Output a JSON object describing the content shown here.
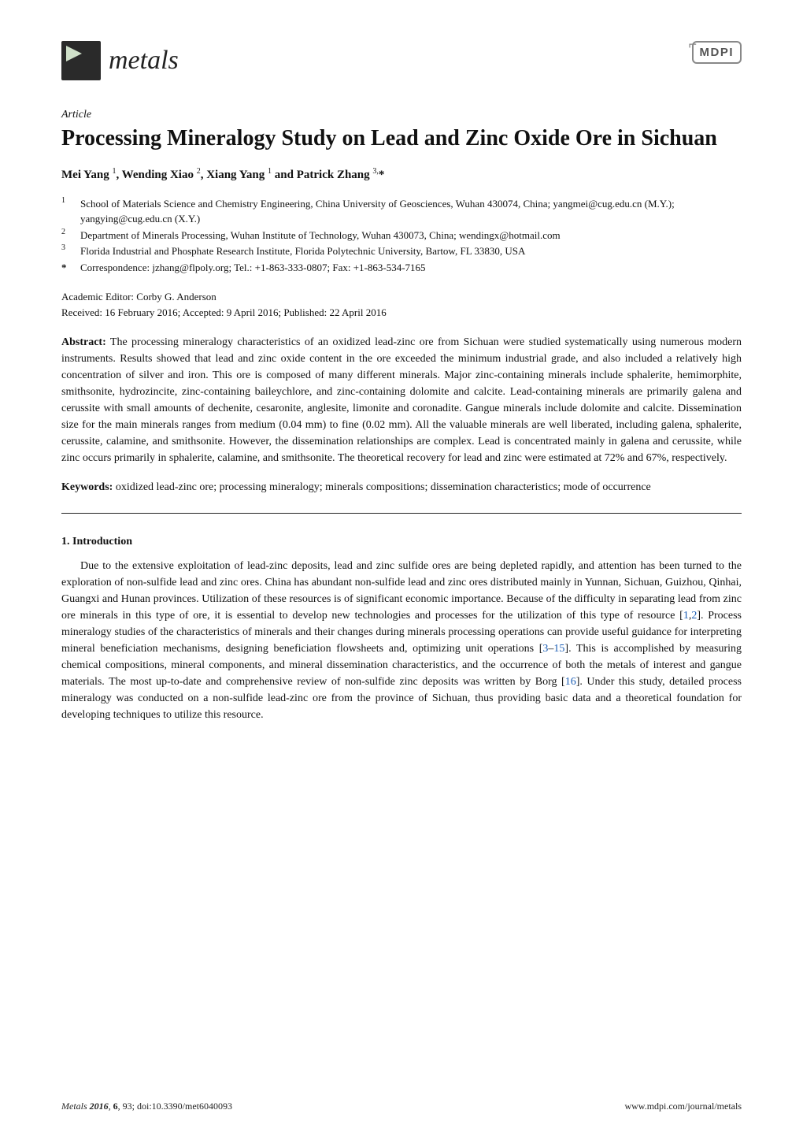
{
  "journal": {
    "name": "metals",
    "publisher_mark": "MDPI"
  },
  "article": {
    "label": "Article",
    "title": "Processing Mineralogy Study on Lead and Zinc Oxide Ore in Sichuan",
    "authors_html": "Mei Yang <sup>1</sup>, Wending Xiao <sup>2</sup>, Xiang Yang <sup>1</sup> and Patrick Zhang <sup>3,</sup>*"
  },
  "affiliations": [
    {
      "num": "1",
      "text": "School of Materials Science and Chemistry Engineering, China University of Geosciences, Wuhan 430074, China; yangmei@cug.edu.cn (M.Y.); yangying@cug.edu.cn (X.Y.)"
    },
    {
      "num": "2",
      "text": "Department of Minerals Processing, Wuhan Institute of Technology, Wuhan 430073, China; wendingx@hotmail.com"
    },
    {
      "num": "3",
      "text": "Florida Industrial and Phosphate Research Institute, Florida Polytechnic University, Bartow, FL 33830, USA"
    }
  ],
  "correspondence": {
    "marker": "*",
    "text": "Correspondence: jzhang@flpoly.org; Tel.: +1-863-333-0807; Fax: +1-863-534-7165"
  },
  "editorial": {
    "editor": "Academic Editor: Corby G. Anderson",
    "dates": "Received: 16 February 2016; Accepted: 9 April 2016; Published: 22 April 2016"
  },
  "abstract": {
    "label": "Abstract:",
    "text": "The processing mineralogy characteristics of an oxidized lead-zinc ore from Sichuan were studied systematically using numerous modern instruments. Results showed that lead and zinc oxide content in the ore exceeded the minimum industrial grade, and also included a relatively high concentration of silver and iron. This ore is composed of many different minerals. Major zinc-containing minerals include sphalerite, hemimorphite, smithsonite, hydrozincite, zinc-containing baileychlore, and zinc-containing dolomite and calcite. Lead-containing minerals are primarily galena and cerussite with small amounts of dechenite, cesaronite, anglesite, limonite and coronadite. Gangue minerals include dolomite and calcite. Dissemination size for the main minerals ranges from medium (0.04 mm) to fine (0.02 mm). All the valuable minerals are well liberated, including galena, sphalerite, cerussite, calamine, and smithsonite. However, the dissemination relationships are complex. Lead is concentrated mainly in galena and cerussite, while zinc occurs primarily in sphalerite, calamine, and smithsonite. The theoretical recovery for lead and zinc were estimated at 72% and 67%, respectively."
  },
  "keywords": {
    "label": "Keywords:",
    "text": "oxidized lead-zinc ore; processing mineralogy; minerals compositions; dissemination characteristics; mode of occurrence"
  },
  "section1": {
    "heading": "1. Introduction",
    "paragraph_pre": "Due to the extensive exploitation of lead-zinc deposits, lead and zinc sulfide ores are being depleted rapidly, and attention has been turned to the exploration of non-sulfide lead and zinc ores. China has abundant non-sulfide lead and zinc ores distributed mainly in Yunnan, Sichuan, Guizhou, Qinhai, Guangxi and Hunan provinces. Utilization of these resources is of significant economic importance. Because of the difficulty in separating lead from zinc ore minerals in this type of ore, it is essential to develop new technologies and processes for the utilization of this type of resource [",
    "ref1": "1",
    "ref_sep1": ",",
    "ref2": "2",
    "paragraph_mid1": "]. Process mineralogy studies of the characteristics of minerals and their changes during minerals processing operations can provide useful guidance for interpreting mineral beneficiation mechanisms, designing beneficiation flowsheets and, optimizing unit operations [",
    "ref3": "3",
    "ref_dash": "–",
    "ref15": "15",
    "paragraph_mid2": "]. This is accomplished by measuring chemical compositions, mineral components, and mineral dissemination characteristics, and the occurrence of both the metals of interest and gangue materials. The most up-to-date and comprehensive review of non-sulfide zinc deposits was written by Borg [",
    "ref16": "16",
    "paragraph_post": "]. Under this study, detailed process mineralogy was conducted on a non-sulfide lead-zinc ore from the province of Sichuan, thus providing basic data and a theoretical foundation for developing techniques to utilize this resource."
  },
  "footer": {
    "left_journal": "Metals",
    "left_year": " 2016",
    "left_volume": "6",
    "left_rest": ", 93; doi:10.3390/met6040093",
    "right": "www.mdpi.com/journal/metals"
  }
}
